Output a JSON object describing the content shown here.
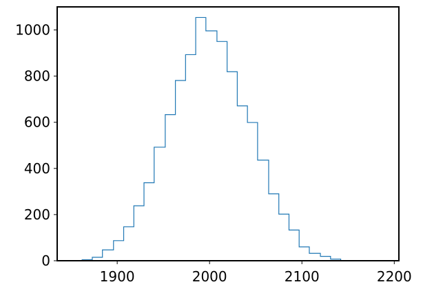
{
  "chart_data": {
    "type": "histogram",
    "title": "",
    "xlabel": "",
    "ylabel": "",
    "xlim": [
      1835,
      2205
    ],
    "ylim": [
      0,
      1100
    ],
    "bin_edges": [
      1851,
      1862,
      1873,
      1884,
      1896,
      1907,
      1918,
      1929,
      1940,
      1952,
      1963,
      1974,
      1985,
      1996,
      2008,
      2019,
      2030,
      2041,
      2052,
      2064,
      2075,
      2086,
      2097,
      2108,
      2120,
      2131,
      2142
    ],
    "counts": [
      1,
      4,
      15,
      47,
      87,
      147,
      238,
      338,
      492,
      633,
      781,
      893,
      1054,
      996,
      950,
      819,
      671,
      599,
      436,
      290,
      202,
      133,
      60,
      32,
      19,
      7
    ],
    "x_ticks": [
      1900,
      2000,
      2100,
      2200
    ],
    "x_tick_labels": [
      "1900",
      "2000",
      "2100",
      "2200"
    ],
    "y_ticks": [
      0,
      200,
      400,
      600,
      800,
      1000
    ],
    "y_tick_labels": [
      "0",
      "200",
      "400",
      "600",
      "800",
      "1000"
    ],
    "line_color": "#1f77b4",
    "grid": false,
    "legend": "none"
  }
}
